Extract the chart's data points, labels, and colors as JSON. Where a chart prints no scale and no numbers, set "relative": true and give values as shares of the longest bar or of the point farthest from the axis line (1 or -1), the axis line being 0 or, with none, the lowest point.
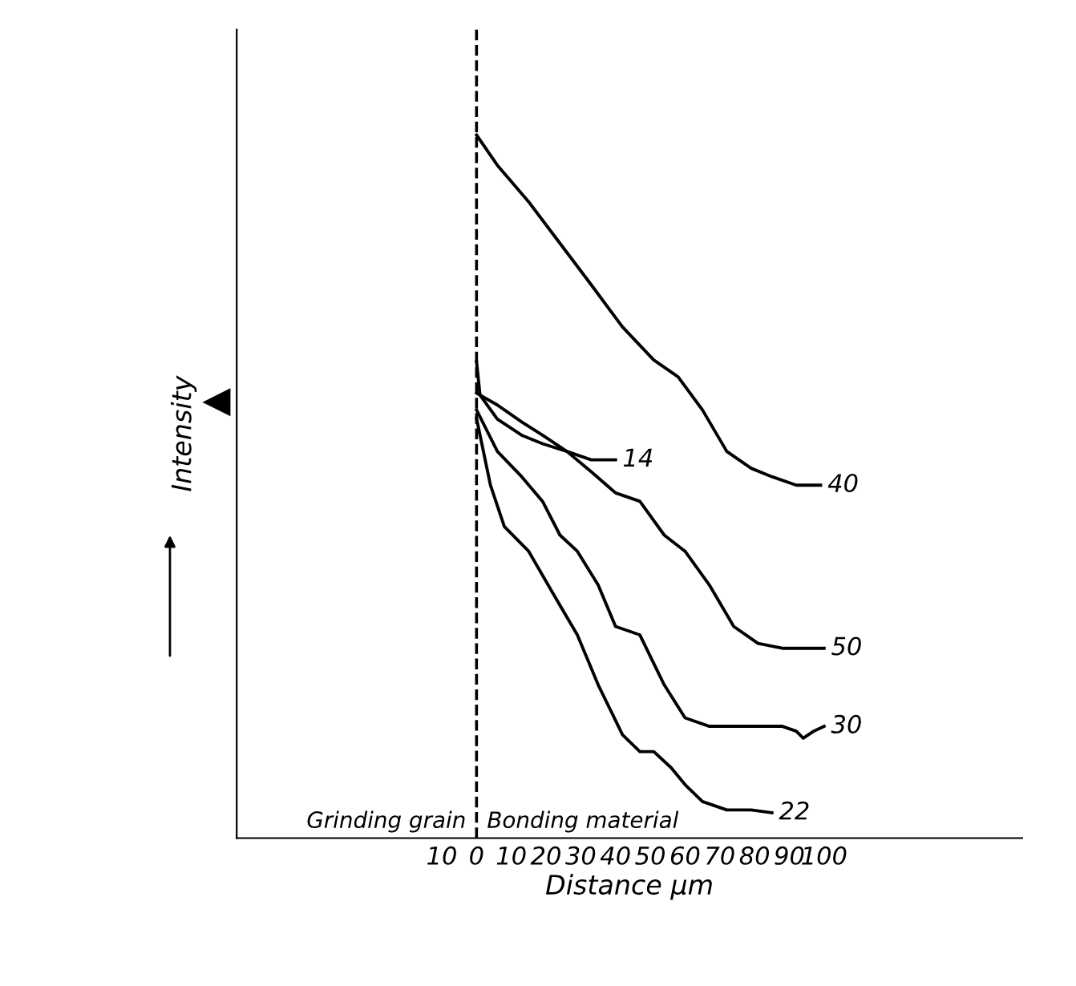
{
  "chart_data": {
    "type": "line",
    "xlabel": "Distance µm",
    "ylabel": "Intensity",
    "relative": true,
    "xlim": [
      -69,
      157
    ],
    "xticks": [
      {
        "value": -10,
        "label": "10"
      },
      0,
      10,
      20,
      30,
      40,
      50,
      60,
      70,
      80,
      90,
      100
    ],
    "grid": false,
    "legend": false,
    "marker": "none",
    "line_style": "solid",
    "ref_lines": [
      {
        "axis": "x",
        "value": 0,
        "line_style": "dashed",
        "color": "#000000"
      }
    ],
    "annotations": [
      "Grinding grain",
      "Bonding material"
    ],
    "series": [
      {
        "name": "40",
        "color": "#000000",
        "x": [
          0,
          6,
          15,
          24,
          33,
          42,
          51,
          58,
          65,
          72,
          79,
          85,
          92,
          99
        ],
        "values": [
          1.0,
          0.957,
          0.905,
          0.846,
          0.787,
          0.727,
          0.68,
          0.656,
          0.609,
          0.55,
          0.526,
          0.514,
          0.502,
          0.502
        ]
      },
      {
        "name": "14",
        "color": "#000000",
        "x": [
          0,
          1,
          6,
          13,
          19,
          26,
          33,
          38,
          40
        ],
        "values": [
          0.678,
          0.63,
          0.596,
          0.573,
          0.561,
          0.55,
          0.538,
          0.538,
          0.538
        ]
      },
      {
        "name": "50",
        "color": "#000000",
        "x": [
          0,
          6,
          13,
          19,
          26,
          33,
          40,
          47,
          54,
          60,
          67,
          74,
          81,
          88,
          94,
          100
        ],
        "values": [
          0.633,
          0.616,
          0.592,
          0.573,
          0.55,
          0.521,
          0.491,
          0.479,
          0.431,
          0.408,
          0.36,
          0.301,
          0.277,
          0.27,
          0.27,
          0.27
        ]
      },
      {
        "name": "30",
        "color": "#000000",
        "x": [
          0,
          6,
          13,
          19,
          24,
          29,
          35,
          40,
          47,
          54,
          60,
          67,
          74,
          81,
          88,
          92,
          94,
          97,
          100
        ],
        "values": [
          0.609,
          0.55,
          0.514,
          0.479,
          0.431,
          0.408,
          0.36,
          0.301,
          0.289,
          0.218,
          0.171,
          0.159,
          0.159,
          0.159,
          0.159,
          0.152,
          0.142,
          0.152,
          0.159
        ]
      },
      {
        "name": "22",
        "color": "#000000",
        "x": [
          0,
          4,
          8,
          15,
          22,
          29,
          35,
          42,
          47,
          51,
          56,
          60,
          65,
          72,
          79,
          85
        ],
        "values": [
          0.597,
          0.502,
          0.443,
          0.408,
          0.348,
          0.289,
          0.218,
          0.147,
          0.123,
          0.123,
          0.1,
          0.076,
          0.052,
          0.04,
          0.04,
          0.036
        ]
      }
    ]
  }
}
